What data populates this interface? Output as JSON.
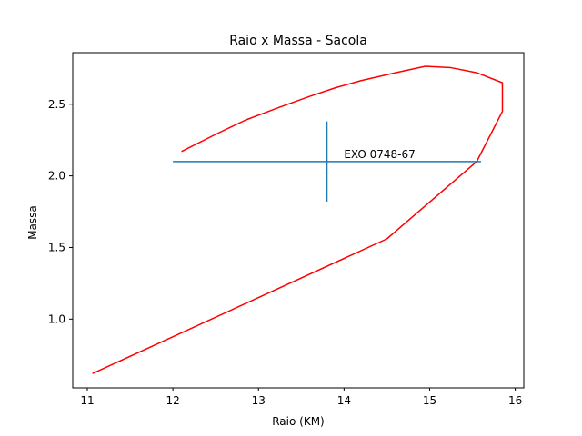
{
  "chart_data": {
    "type": "line",
    "title": "Raio x Massa - Sacola",
    "xlabel": "Raio (KM)",
    "ylabel": "Massa",
    "xlim": [
      10.83,
      16.1
    ],
    "ylim": [
      0.52,
      2.86
    ],
    "xticks": [
      11,
      12,
      13,
      14,
      15,
      16
    ],
    "xtick_labels": [
      "11",
      "12",
      "13",
      "14",
      "15",
      "16"
    ],
    "yticks": [
      1.0,
      1.5,
      2.0,
      2.5
    ],
    "ytick_labels": [
      "1.0",
      "1.5",
      "2.0",
      "2.5"
    ],
    "grid": false,
    "series": [
      {
        "color": "#ff0000",
        "x": [
          11.06,
          14.5,
          15.55,
          15.85,
          15.85,
          15.55,
          15.25,
          14.95,
          14.6,
          14.2,
          13.9,
          13.6,
          13.25,
          12.85,
          12.5,
          12.1
        ],
        "y": [
          0.62,
          1.56,
          2.1,
          2.45,
          2.65,
          2.72,
          2.755,
          2.765,
          2.72,
          2.665,
          2.615,
          2.555,
          2.48,
          2.39,
          2.29,
          2.17
        ]
      }
    ],
    "errorbar": {
      "color": "#1f77b4",
      "x": 13.8,
      "y": 2.1,
      "xerr": 1.8,
      "yerr": 0.28,
      "label": "EXO 0748-67",
      "label_x": 14.0,
      "label_y": 2.1
    }
  }
}
